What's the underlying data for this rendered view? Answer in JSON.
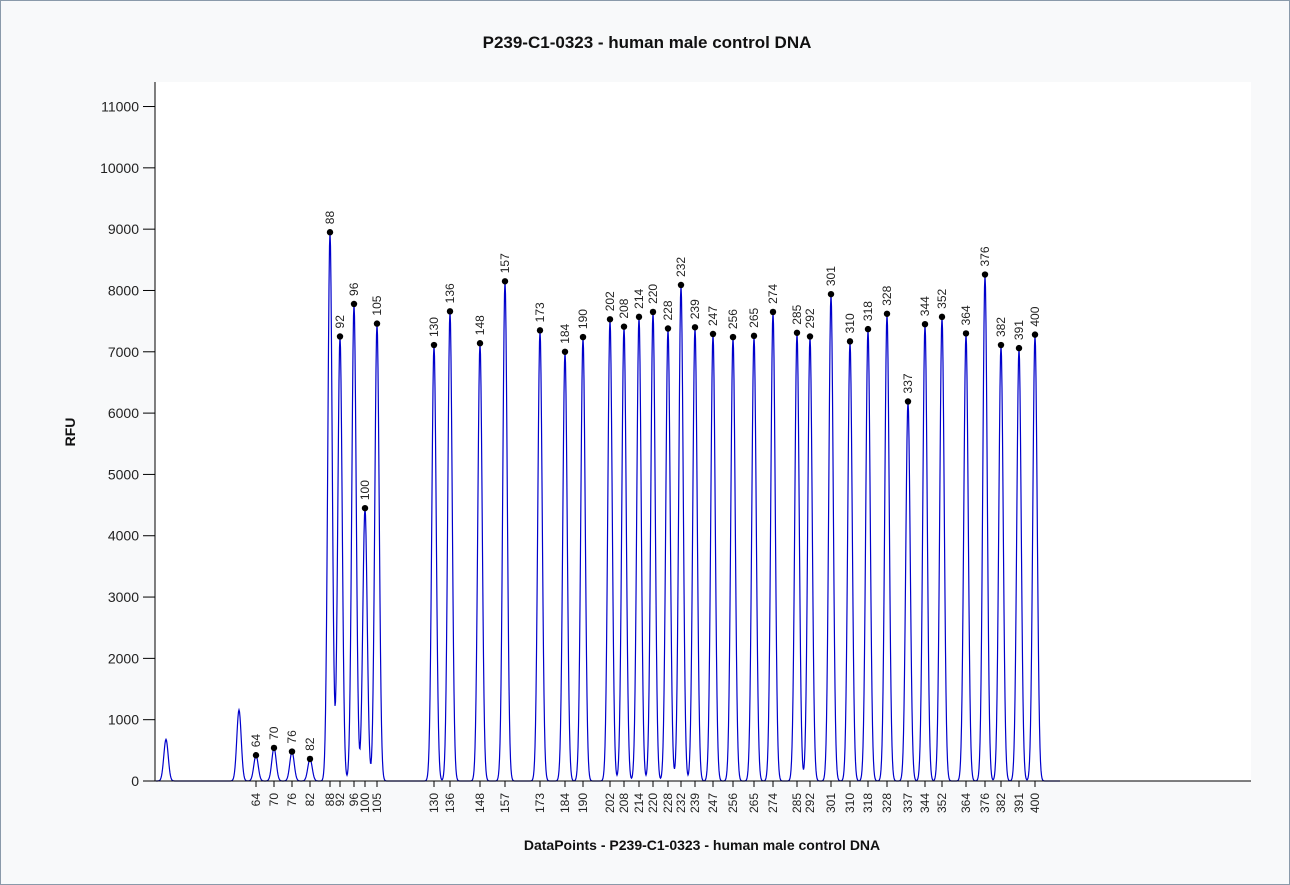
{
  "chart_data": {
    "type": "line",
    "title": "P239-C1-0323 - human male control DNA",
    "xlabel": "DataPoints - P239-C1-0323 - human male control DNA",
    "ylabel": "RFU",
    "ylim": [
      0,
      11400
    ],
    "yticks": [
      0,
      1000,
      2000,
      3000,
      4000,
      5000,
      6000,
      7000,
      8000,
      9000,
      10000,
      11000
    ],
    "grid": false,
    "line_color": "#0000cc",
    "marker_color": "#000000",
    "peaks": [
      {
        "label": "64",
        "x": 64,
        "y": 420
      },
      {
        "label": "70",
        "x": 70,
        "y": 540
      },
      {
        "label": "76",
        "x": 76,
        "y": 480
      },
      {
        "label": "82",
        "x": 82,
        "y": 360
      },
      {
        "label": "88",
        "x": 88,
        "y": 8950
      },
      {
        "label": "92",
        "x": 92,
        "y": 7250
      },
      {
        "label": "96",
        "x": 96,
        "y": 7780
      },
      {
        "label": "100",
        "x": 100,
        "y": 4450
      },
      {
        "label": "105",
        "x": 105,
        "y": 7460
      },
      {
        "label": "130",
        "x": 130,
        "y": 7110
      },
      {
        "label": "136",
        "x": 136,
        "y": 7660
      },
      {
        "label": "148",
        "x": 148,
        "y": 7140
      },
      {
        "label": "157",
        "x": 157,
        "y": 8150
      },
      {
        "label": "173",
        "x": 173,
        "y": 7350
      },
      {
        "label": "184",
        "x": 184,
        "y": 7000
      },
      {
        "label": "190",
        "x": 190,
        "y": 7240
      },
      {
        "label": "202",
        "x": 202,
        "y": 7530
      },
      {
        "label": "208",
        "x": 208,
        "y": 7410
      },
      {
        "label": "214",
        "x": 214,
        "y": 7570
      },
      {
        "label": "220",
        "x": 220,
        "y": 7650
      },
      {
        "label": "228",
        "x": 228,
        "y": 7380
      },
      {
        "label": "232",
        "x": 232,
        "y": 8090
      },
      {
        "label": "239",
        "x": 239,
        "y": 7400
      },
      {
        "label": "247",
        "x": 247,
        "y": 7290
      },
      {
        "label": "256",
        "x": 256,
        "y": 7240
      },
      {
        "label": "265",
        "x": 265,
        "y": 7260
      },
      {
        "label": "274",
        "x": 274,
        "y": 7650
      },
      {
        "label": "285",
        "x": 285,
        "y": 7310
      },
      {
        "label": "292",
        "x": 292,
        "y": 7250
      },
      {
        "label": "301",
        "x": 301,
        "y": 7940
      },
      {
        "label": "310",
        "x": 310,
        "y": 7170
      },
      {
        "label": "318",
        "x": 318,
        "y": 7370
      },
      {
        "label": "328",
        "x": 328,
        "y": 7620
      },
      {
        "label": "337",
        "x": 337,
        "y": 6190
      },
      {
        "label": "344",
        "x": 344,
        "y": 7450
      },
      {
        "label": "352",
        "x": 352,
        "y": 7570
      },
      {
        "label": "364",
        "x": 364,
        "y": 7300
      },
      {
        "label": "376",
        "x": 376,
        "y": 8260
      },
      {
        "label": "382",
        "x": 382,
        "y": 7110
      },
      {
        "label": "391",
        "x": 391,
        "y": 7060
      },
      {
        "label": "400",
        "x": 400,
        "y": 7280
      }
    ],
    "unlabeled_peaks": [
      {
        "x": 20,
        "y": 680
      },
      {
        "x": 51,
        "y": 1160
      }
    ]
  }
}
